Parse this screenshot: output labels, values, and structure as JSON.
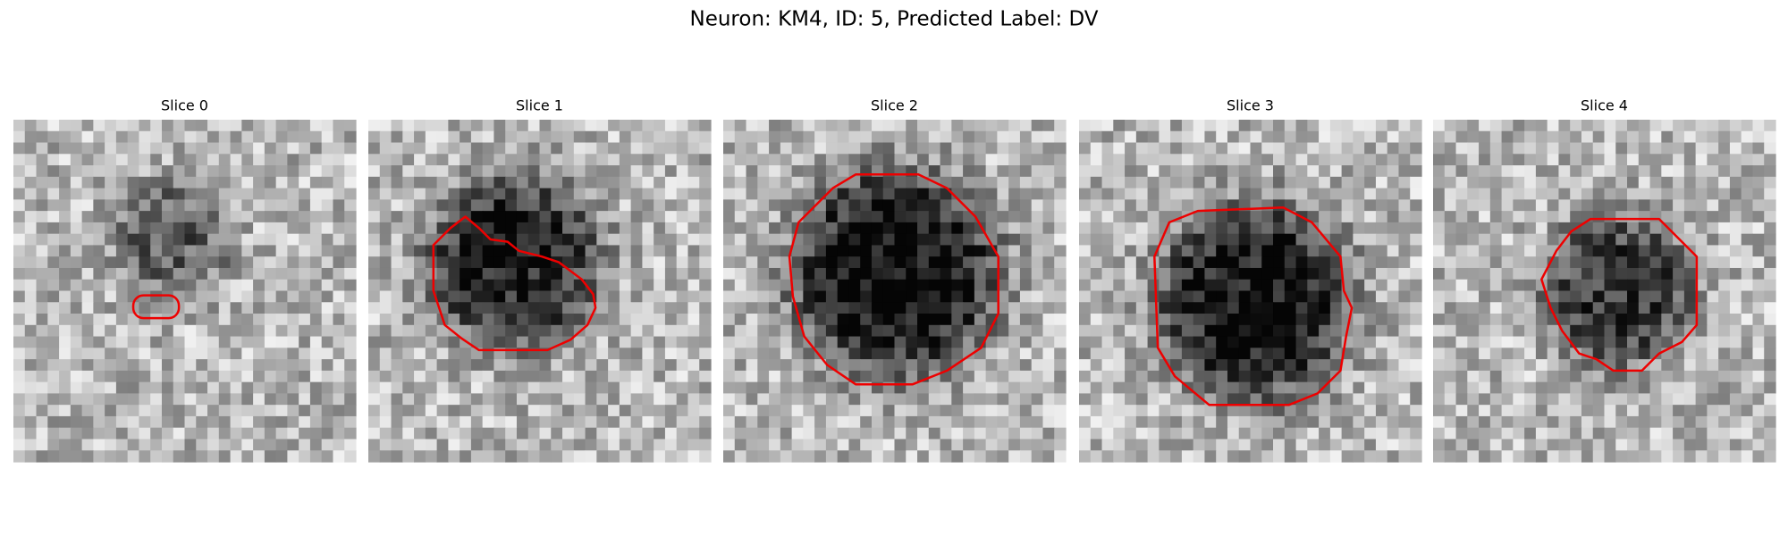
{
  "figure": {
    "title": "Neuron: KM4, ID: 5, Predicted Label: DV",
    "panels": [
      {
        "title": "Slice 0"
      },
      {
        "title": "Slice 1"
      },
      {
        "title": "Slice 2"
      },
      {
        "title": "Slice 3"
      },
      {
        "title": "Slice 4"
      }
    ]
  }
}
